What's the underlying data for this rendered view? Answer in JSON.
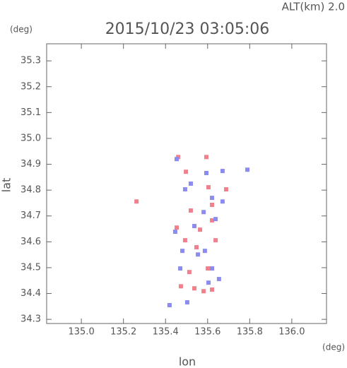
{
  "chart_data": {
    "type": "scatter",
    "title": "2015/10/23 03:05:06",
    "annotation": "ALT(km) 2.0",
    "y_unit": "(deg)",
    "x_unit": "(deg)",
    "xlabel": "lon",
    "ylabel": "lat",
    "xlim": [
      134.835,
      136.165
    ],
    "ylim": [
      34.284,
      35.366
    ],
    "xticks": [
      {
        "value": 135,
        "label": "135.0"
      },
      {
        "value": 135.2,
        "label": "135.2"
      },
      {
        "value": 135.4,
        "label": "135.4"
      },
      {
        "value": 135.6,
        "label": "135.6"
      },
      {
        "value": 135.8,
        "label": "135.8"
      },
      {
        "value": 136,
        "label": "136.0"
      }
    ],
    "yticks": [
      34.3,
      34.4,
      34.5,
      34.6,
      34.7,
      34.8,
      34.9,
      {
        "value": 35,
        "label": "35.0"
      },
      35.1,
      35.2,
      35.3
    ],
    "series": [
      {
        "color": "#f0808c",
        "x": [
          135.262,
          135.497,
          135.594,
          135.621,
          135.52,
          135.564,
          135.621,
          135.493,
          135.547,
          135.638,
          135.601,
          135.513,
          135.537,
          135.621,
          135.581,
          135.46,
          135.688,
          135.604,
          135.453,
          135.473
        ],
        "y": [
          34.756,
          34.871,
          34.928,
          34.743,
          34.721,
          34.647,
          34.683,
          34.606,
          34.579,
          34.606,
          34.497,
          34.483,
          34.42,
          34.415,
          34.409,
          34.928,
          34.803,
          34.811,
          34.655,
          34.428
        ]
      },
      {
        "color": "#8c8cf0",
        "x": [
          135.453,
          135.594,
          135.671,
          135.621,
          135.493,
          135.638,
          135.446,
          135.537,
          135.48,
          135.587,
          135.621,
          135.654,
          135.47,
          135.419,
          135.503,
          135.554,
          135.581,
          135.604,
          135.671,
          135.789,
          135.52
        ],
        "y": [
          34.92,
          34.866,
          34.874,
          34.77,
          34.803,
          34.688,
          34.639,
          34.661,
          34.565,
          34.565,
          34.497,
          34.456,
          34.497,
          34.355,
          34.366,
          34.551,
          34.715,
          34.442,
          34.756,
          34.879,
          34.825
        ]
      }
    ]
  }
}
